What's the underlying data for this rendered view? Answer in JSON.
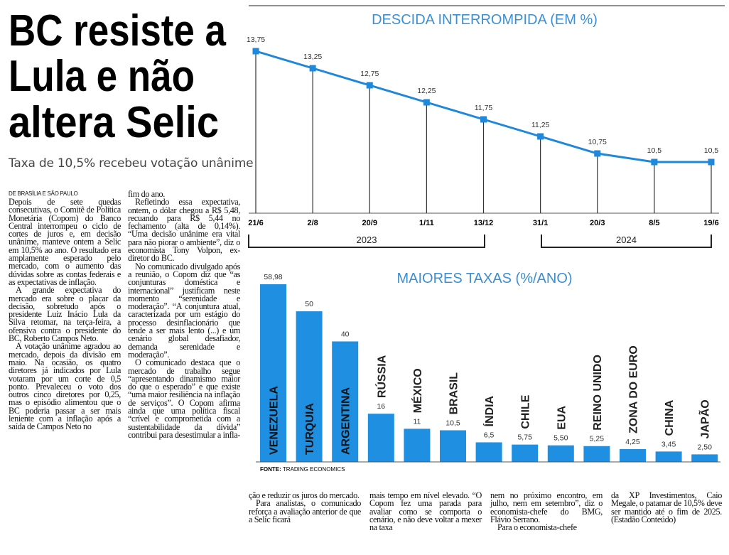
{
  "headline": [
    "BC resiste a",
    "Lula e não",
    "altera Selic"
  ],
  "subtitle": "Taxa de 10,5% recebeu votação unânime",
  "article": {
    "dateline": "DE BRASÍLIA E SÃO PAULO",
    "columns": [
      [
        "Depois de sete quedas consecutivas, o Comitê de Política Monetária (Copom) do Banco Central interrompeu o ciclo de cortes de juros e, em decisão unânime, manteve ontem a Selic em 10,5% ao ano. O resultado era amplamente esperado pelo mercado, com o aumento das dúvidas sobre as contas federais e as expectativas de inflação.",
        "A grande expectativa do mercado era sobre o placar da decisão, sobretudo após o presidente Luiz Inácio Lula da Silva retomar, na terça-feira, a ofensiva contra o presidente do BC, Roberto Campos Neto.",
        "A votação unânime agradou ao mercado, depois da divisão em maio. Na ocasião, os quatro diretores já indicados por Lula votaram por um corte de 0,5 ponto. Prevaleceu o voto dos outros cinco diretores por 0,25, mas o episódio alimentou que o BC poderia passar a ser mais leniente com a inflação após a saída de Campos Neto no"
      ],
      [
        "fim do ano.",
        "Refletindo essa expectativa, ontem, o dólar chegou a R$ 5,48, recuando para R$ 5,44 no fechamento (alta de 0,14%). “Uma decisão unânime era vital para não piorar o ambiente”, diz o economista Tony Volpon, ex-diretor do BC.",
        "No comunicado divulgado após a reunião, o Copom diz que “as conjunturas doméstica e internacional” justificam neste momento “serenidade e moderação”. “A conjuntura atual, caracterizada por um estágio do processo desinflacionário que tende a ser mais lento (...) e um cenário global desafiador, demanda serenidade e moderação”.",
        "O comunicado destaca que o mercado de trabalho segue “apresentando dinamismo maior do que o esperado” e que existe “uma maior resiliência na inflação de serviços”. O Copom afirma ainda que uma política fiscal “crível e comprometida com a sustentabilidade da dívida” contribui para desestimular a infla-"
      ],
      [
        "ção e reduzir os juros do mercado.",
        "Para analistas, o comunicado reforça a avaliação anterior de que a Selic ficará"
      ],
      [
        "mais tempo em nível elevado. “O Copom fez uma parada para avaliar como se comporta o cenário, e não deve voltar a mexer na taxa"
      ],
      [
        "nem no próximo encontro, em julho, nem em setembro”, diz o economista-chefe do BMG, Flávio Serrano.",
        "Para o economista-chefe"
      ],
      [
        "da XP Investimentos, Caio Megale, o patamar de 10,5% deve ser mantido até o fim de 2025. (Estadão Conteúdo)"
      ]
    ]
  },
  "chart_data": [
    {
      "type": "line",
      "title": "DESCIDA INTERROMPIDA (EM %)",
      "color": "#1f88d8",
      "categories": [
        "21/6",
        "2/8",
        "20/9",
        "1/11",
        "13/12",
        "31/1",
        "20/3",
        "8/5",
        "19/6"
      ],
      "values": [
        13.75,
        13.25,
        12.75,
        12.25,
        11.75,
        11.25,
        10.75,
        10.5,
        10.5
      ],
      "value_labels": [
        "13,75",
        "13,25",
        "12,75",
        "12,25",
        "11,75",
        "11,25",
        "10,75",
        "10,5",
        "10,5"
      ],
      "year_groups": [
        "2023",
        "2024"
      ]
    },
    {
      "type": "bar",
      "title": "MAIORES TAXAS (%/ANO)",
      "color": "#1f8fe2",
      "categories": [
        "VENEZUELA",
        "TURQUIA",
        "ARGENTINA",
        "RÚSSIA",
        "MÉXICO",
        "BRASIL",
        "ÍNDIA",
        "CHILE",
        "EUA",
        "REINO UNIDO",
        "ZONA DO EURO",
        "CHINA",
        "JAPÃO"
      ],
      "values": [
        58.98,
        50,
        40,
        16,
        11,
        10.5,
        6.5,
        5.75,
        5.5,
        5.25,
        4.25,
        3.45,
        2.5
      ],
      "value_labels": [
        "58,98",
        "50",
        "40",
        "16",
        "11",
        "10,5",
        "6,5",
        "5,75",
        "5,50",
        "5,25",
        "4,25",
        "3,45",
        "2,50"
      ],
      "source_label": "FONTE:",
      "source": "TRADING ECONOMICS"
    }
  ]
}
